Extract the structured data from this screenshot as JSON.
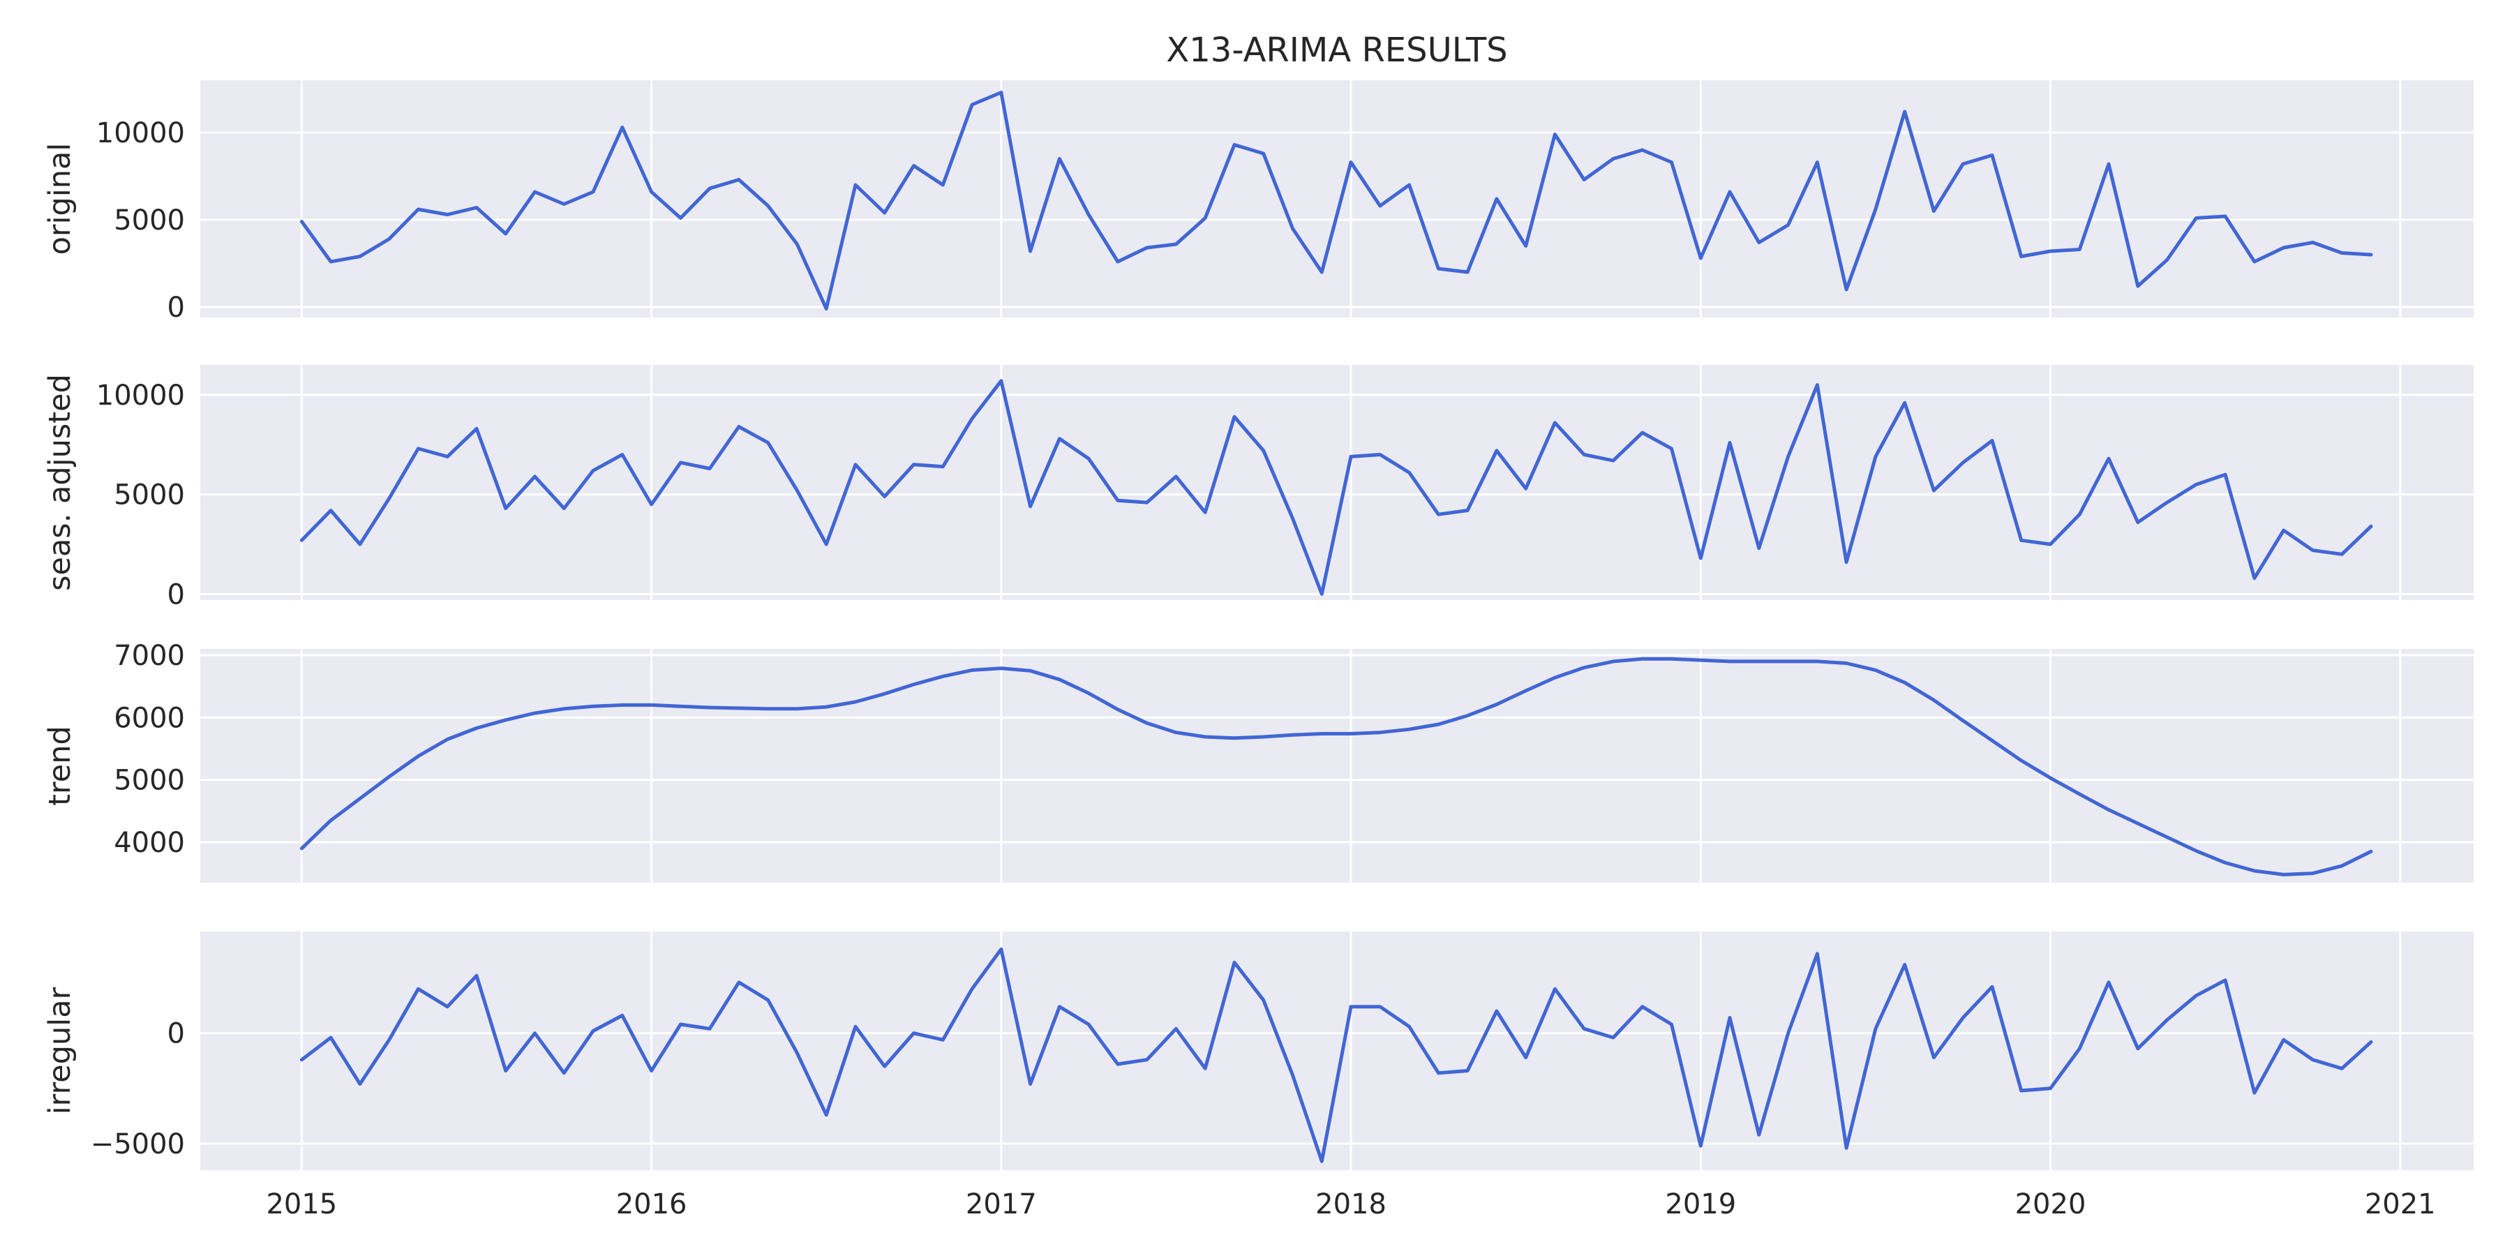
{
  "chart_data": {
    "type": "line",
    "title": "X13-ARIMA RESULTS",
    "line_color": "#4166d5",
    "background_color": "#eaeaf2",
    "grid": true,
    "x_start": "2015-01",
    "x_frequency": "monthly",
    "xticks": [
      {
        "value": 2015,
        "label": "2015"
      },
      {
        "value": 2016,
        "label": "2016"
      },
      {
        "value": 2017,
        "label": "2017"
      },
      {
        "value": 2018,
        "label": "2018"
      },
      {
        "value": 2019,
        "label": "2019"
      },
      {
        "value": 2020,
        "label": "2020"
      },
      {
        "value": 2021,
        "label": "2021"
      }
    ],
    "xlim": [
      2014.71,
      2021.21
    ],
    "panels": [
      {
        "ylabel": "original",
        "ylim": [
          -600,
          13000
        ],
        "yticks": [
          0,
          5000,
          10000
        ],
        "values": [
          4900,
          2600,
          2900,
          3900,
          5600,
          5300,
          5700,
          4200,
          6600,
          5900,
          6600,
          10300,
          6600,
          5100,
          6800,
          7300,
          5800,
          3600,
          -100,
          7000,
          5400,
          8100,
          7000,
          11600,
          12300,
          3200,
          8500,
          5300,
          2600,
          3400,
          3600,
          5100,
          9300,
          8800,
          4500,
          2000,
          8300,
          5800,
          7000,
          2200,
          2000,
          6200,
          3500,
          9900,
          7300,
          8500,
          9000,
          8300,
          2800,
          6600,
          3700,
          4700,
          8300,
          1000,
          5600,
          11200,
          5500,
          8200,
          8700,
          2900,
          3200,
          3300,
          8200,
          1200,
          2700,
          5100,
          5200,
          2600,
          3400,
          3700,
          3100,
          3000
        ]
      },
      {
        "ylabel": "seas. adjusted",
        "ylim": [
          -300,
          11500
        ],
        "yticks": [
          0,
          5000,
          10000
        ],
        "values": [
          2700,
          4200,
          2500,
          4800,
          7300,
          6900,
          8300,
          4300,
          5900,
          4300,
          6200,
          7000,
          4500,
          6600,
          6300,
          8400,
          7600,
          5200,
          2500,
          6500,
          4900,
          6500,
          6400,
          8800,
          10700,
          4400,
          7800,
          6800,
          4700,
          4600,
          5900,
          4100,
          8900,
          7200,
          3800,
          0,
          6900,
          7000,
          6100,
          4000,
          4200,
          7200,
          5300,
          8600,
          7000,
          6700,
          8100,
          7300,
          1800,
          7600,
          2300,
          6900,
          10500,
          1600,
          6900,
          9600,
          5200,
          6600,
          7700,
          2700,
          2500,
          4000,
          6800,
          3600,
          4600,
          5500,
          6000,
          800,
          3200,
          2200,
          2000,
          3400
        ]
      },
      {
        "ylabel": "trend",
        "ylim": [
          3350,
          7100
        ],
        "yticks": [
          4000,
          5000,
          6000,
          7000
        ],
        "values": [
          3900,
          4350,
          4700,
          5050,
          5380,
          5650,
          5830,
          5960,
          6070,
          6140,
          6180,
          6200,
          6200,
          6180,
          6160,
          6150,
          6140,
          6140,
          6170,
          6250,
          6380,
          6530,
          6660,
          6760,
          6790,
          6750,
          6610,
          6390,
          6130,
          5910,
          5760,
          5690,
          5670,
          5690,
          5720,
          5740,
          5740,
          5760,
          5810,
          5890,
          6030,
          6210,
          6430,
          6640,
          6800,
          6900,
          6940,
          6940,
          6920,
          6900,
          6900,
          6900,
          6900,
          6870,
          6760,
          6560,
          6280,
          5950,
          5630,
          5310,
          5030,
          4770,
          4520,
          4300,
          4080,
          3860,
          3670,
          3540,
          3480,
          3500,
          3620,
          3850
        ]
      },
      {
        "ylabel": "irregular",
        "ylim": [
          -6200,
          4600
        ],
        "yticks": [
          -5000,
          0
        ],
        "values": [
          -1200,
          -200,
          -2300,
          -300,
          2000,
          1200,
          2600,
          -1700,
          0,
          -1800,
          100,
          800,
          -1700,
          400,
          200,
          2300,
          1500,
          -900,
          -3700,
          300,
          -1500,
          0,
          -300,
          2000,
          3800,
          -2300,
          1200,
          400,
          -1400,
          -1200,
          200,
          -1600,
          3200,
          1500,
          -1900,
          -5800,
          1200,
          1200,
          300,
          -1800,
          -1700,
          1000,
          -1100,
          2000,
          200,
          -200,
          1200,
          400,
          -5100,
          700,
          -4600,
          0,
          3600,
          -5200,
          200,
          3100,
          -1100,
          700,
          2100,
          -2600,
          -2500,
          -700,
          2300,
          -700,
          600,
          1700,
          2400,
          -2700,
          -300,
          -1200,
          -1600,
          -400
        ]
      }
    ]
  }
}
